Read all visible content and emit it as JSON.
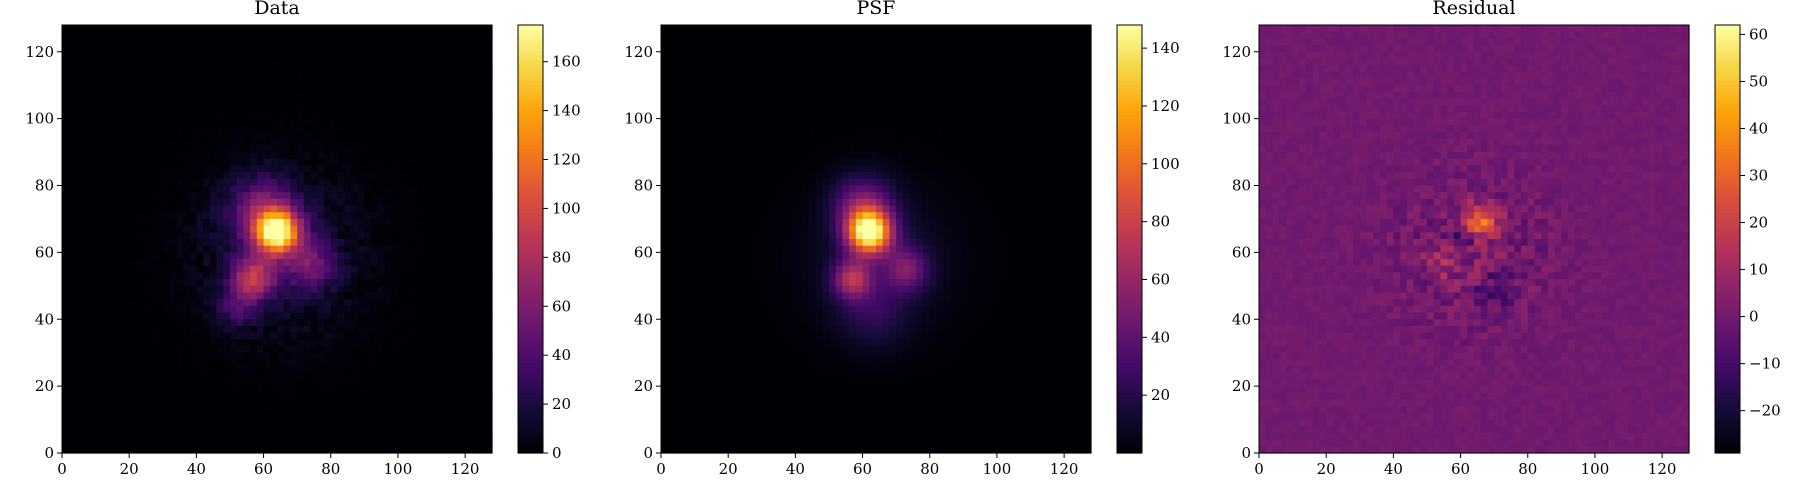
{
  "chart_data": [
    {
      "type": "heatmap",
      "title": "Data",
      "xlabel": "",
      "ylabel": "",
      "xlim": [
        0,
        128
      ],
      "ylim": [
        0,
        128
      ],
      "xticks": [
        "0",
        "20",
        "40",
        "60",
        "80",
        "100",
        "120"
      ],
      "yticks": [
        "0",
        "20",
        "40",
        "60",
        "80",
        "100",
        "120"
      ],
      "colormap": "inferno",
      "colorbar": {
        "min": 0,
        "max": 175,
        "ticks": [
          "0",
          "20",
          "40",
          "60",
          "80",
          "100",
          "120",
          "140",
          "160"
        ]
      },
      "components": [
        {
          "x": 64,
          "y": 66,
          "amp": 160,
          "sigma": 4.5
        },
        {
          "x": 60,
          "y": 72,
          "amp": 55,
          "sigma": 7
        },
        {
          "x": 57,
          "y": 52,
          "amp": 80,
          "sigma": 4.5
        },
        {
          "x": 74,
          "y": 56,
          "amp": 45,
          "sigma": 5
        },
        {
          "x": 52,
          "y": 43,
          "amp": 30,
          "sigma": 4
        },
        {
          "x": 65,
          "y": 60,
          "amp": 18,
          "sigma": 16
        }
      ]
    },
    {
      "type": "heatmap",
      "title": "PSF",
      "xlabel": "",
      "ylabel": "",
      "xlim": [
        0,
        128
      ],
      "ylim": [
        0,
        128
      ],
      "xticks": [
        "0",
        "20",
        "40",
        "60",
        "80",
        "100",
        "120"
      ],
      "yticks": [
        "0",
        "20",
        "40",
        "60",
        "80",
        "100",
        "120"
      ],
      "colormap": "inferno",
      "colorbar": {
        "min": 0,
        "max": 148,
        "ticks": [
          "20",
          "40",
          "60",
          "80",
          "100",
          "120",
          "140"
        ]
      },
      "components": [
        {
          "x": 62,
          "y": 66,
          "amp": 145,
          "sigma": 4.5
        },
        {
          "x": 60,
          "y": 74,
          "amp": 45,
          "sigma": 6
        },
        {
          "x": 57,
          "y": 52,
          "amp": 62,
          "sigma": 4
        },
        {
          "x": 73,
          "y": 55,
          "amp": 42,
          "sigma": 4.5
        },
        {
          "x": 63,
          "y": 42,
          "amp": 18,
          "sigma": 7
        },
        {
          "x": 65,
          "y": 58,
          "amp": 14,
          "sigma": 15
        }
      ]
    },
    {
      "type": "heatmap",
      "title": "Residual",
      "xlabel": "",
      "ylabel": "",
      "xlim": [
        0,
        128
      ],
      "ylim": [
        0,
        128
      ],
      "xticks": [
        "0",
        "20",
        "40",
        "60",
        "80",
        "100",
        "120"
      ],
      "yticks": [
        "0",
        "20",
        "40",
        "60",
        "80",
        "100",
        "120"
      ],
      "colormap": "inferno",
      "colorbar": {
        "min": -29,
        "max": 62,
        "ticks": [
          "−20",
          "−10",
          "0",
          "10",
          "20",
          "30",
          "40",
          "50",
          "60"
        ]
      },
      "background_value": 0,
      "components": [
        {
          "x": 66,
          "y": 69,
          "amp": 35,
          "sigma": 3.5
        },
        {
          "x": 60,
          "y": 63,
          "amp": -15,
          "sigma": 3
        },
        {
          "x": 56,
          "y": 58,
          "amp": 10,
          "sigma": 5
        },
        {
          "x": 70,
          "y": 48,
          "amp": -8,
          "sigma": 4
        }
      ],
      "noise_amplitude": 10,
      "noise_sigma": 16
    }
  ]
}
